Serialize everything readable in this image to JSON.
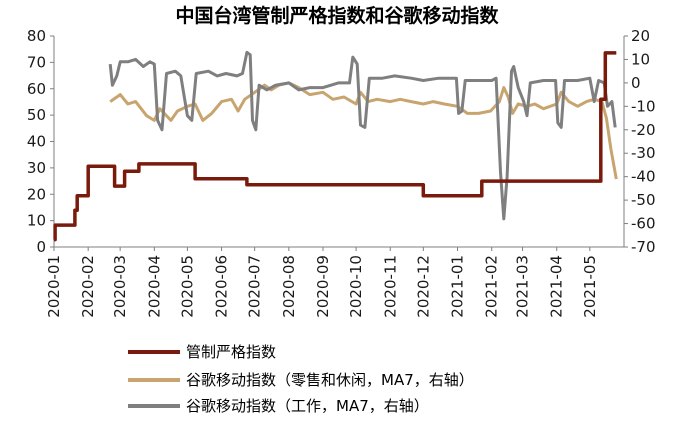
{
  "chart_data": {
    "type": "line",
    "title": "中国台湾管制严格指数和谷歌移动指数",
    "xlabel": "",
    "ylabel_left": "",
    "ylabel_right": "",
    "left_axis": {
      "ylim": [
        0,
        80
      ],
      "ticks": [
        0,
        10,
        20,
        30,
        40,
        50,
        60,
        70,
        80
      ]
    },
    "right_axis": {
      "ylim": [
        -70,
        20
      ],
      "ticks": [
        -70,
        -60,
        -50,
        -40,
        -30,
        -20,
        -10,
        0,
        10,
        20
      ]
    },
    "x_range": [
      "2020-01-01",
      "2021-06-01"
    ],
    "x_tick_labels": [
      "2020-01",
      "2020-02",
      "2020-03",
      "2020-04",
      "2020-05",
      "2020-06",
      "2020-07",
      "2020-08",
      "2020-09",
      "2020-10",
      "2020-11",
      "2020-12",
      "2021-01",
      "2021-02",
      "2021-03",
      "2021-04",
      "2021-05"
    ],
    "grid": false,
    "legend_position": "bottom",
    "series": [
      {
        "name": "管制严格指数",
        "axis": "left",
        "color": "#7a1a0c",
        "step": true,
        "points": [
          [
            "2020-01-01",
            2.8
          ],
          [
            "2020-01-02",
            8.3
          ],
          [
            "2020-01-20",
            13.9
          ],
          [
            "2020-01-22",
            19.4
          ],
          [
            "2020-02-01",
            30.6
          ],
          [
            "2020-02-25",
            23.1
          ],
          [
            "2020-03-05",
            28.7
          ],
          [
            "2020-03-18",
            31.5
          ],
          [
            "2020-05-08",
            25.9
          ],
          [
            "2020-06-24",
            23.6
          ],
          [
            "2020-12-01",
            19.4
          ],
          [
            "2021-01-23",
            25.0
          ],
          [
            "2021-05-11",
            56.0
          ],
          [
            "2021-05-15",
            73.6
          ],
          [
            "2021-05-25",
            73.6
          ]
        ]
      },
      {
        "name": "谷歌移动指数（零售和休闲，MA7，右轴）",
        "axis": "right",
        "color": "#c8a46e",
        "points": [
          [
            "2020-02-21",
            -8
          ],
          [
            "2020-03-01",
            -5
          ],
          [
            "2020-03-08",
            -9
          ],
          [
            "2020-03-15",
            -8
          ],
          [
            "2020-03-25",
            -14
          ],
          [
            "2020-04-01",
            -16
          ],
          [
            "2020-04-06",
            -11
          ],
          [
            "2020-04-16",
            -16
          ],
          [
            "2020-04-22",
            -12
          ],
          [
            "2020-05-01",
            -10
          ],
          [
            "2020-05-08",
            -9
          ],
          [
            "2020-05-15",
            -16
          ],
          [
            "2020-05-23",
            -13
          ],
          [
            "2020-06-01",
            -8
          ],
          [
            "2020-06-10",
            -7
          ],
          [
            "2020-06-16",
            -12
          ],
          [
            "2020-06-22",
            -7
          ],
          [
            "2020-07-01",
            -4
          ],
          [
            "2020-07-10",
            -1
          ],
          [
            "2020-07-16",
            -3
          ],
          [
            "2020-07-23",
            -1
          ],
          [
            "2020-08-01",
            0
          ],
          [
            "2020-08-10",
            -2
          ],
          [
            "2020-08-20",
            -5
          ],
          [
            "2020-09-01",
            -4
          ],
          [
            "2020-09-10",
            -7
          ],
          [
            "2020-09-20",
            -6
          ],
          [
            "2020-10-01",
            -9
          ],
          [
            "2020-10-05",
            -4
          ],
          [
            "2020-10-12",
            -8
          ],
          [
            "2020-10-20",
            -7
          ],
          [
            "2020-11-01",
            -8
          ],
          [
            "2020-11-10",
            -7
          ],
          [
            "2020-11-20",
            -8
          ],
          [
            "2020-12-01",
            -9
          ],
          [
            "2020-12-10",
            -8
          ],
          [
            "2020-12-20",
            -9
          ],
          [
            "2021-01-01",
            -10
          ],
          [
            "2021-01-10",
            -13
          ],
          [
            "2021-01-20",
            -13
          ],
          [
            "2021-01-31",
            -12
          ],
          [
            "2021-02-08",
            -8
          ],
          [
            "2021-02-12",
            -2
          ],
          [
            "2021-02-16",
            -6
          ],
          [
            "2021-02-20",
            -13
          ],
          [
            "2021-02-25",
            -9
          ],
          [
            "2021-03-05",
            -10
          ],
          [
            "2021-03-12",
            -9
          ],
          [
            "2021-03-20",
            -11
          ],
          [
            "2021-04-01",
            -9
          ],
          [
            "2021-04-05",
            -4
          ],
          [
            "2021-04-12",
            -8
          ],
          [
            "2021-04-20",
            -10
          ],
          [
            "2021-04-28",
            -8
          ],
          [
            "2021-05-05",
            -7
          ],
          [
            "2021-05-12",
            -8
          ],
          [
            "2021-05-16",
            -15
          ],
          [
            "2021-05-20",
            -28
          ],
          [
            "2021-05-25",
            -41
          ]
        ]
      },
      {
        "name": "谷歌移动指数（工作，MA7，右轴）",
        "axis": "right",
        "color": "#7f7f7f",
        "points": [
          [
            "2020-02-21",
            8
          ],
          [
            "2020-02-23",
            -1
          ],
          [
            "2020-02-27",
            3
          ],
          [
            "2020-03-01",
            9
          ],
          [
            "2020-03-08",
            9
          ],
          [
            "2020-03-15",
            10
          ],
          [
            "2020-03-22",
            7
          ],
          [
            "2020-03-28",
            9
          ],
          [
            "2020-04-01",
            8
          ],
          [
            "2020-04-04",
            -16
          ],
          [
            "2020-04-08",
            -20
          ],
          [
            "2020-04-12",
            4
          ],
          [
            "2020-04-20",
            5
          ],
          [
            "2020-04-25",
            3
          ],
          [
            "2020-05-01",
            -14
          ],
          [
            "2020-05-05",
            -16
          ],
          [
            "2020-05-09",
            4
          ],
          [
            "2020-05-20",
            5
          ],
          [
            "2020-05-28",
            3
          ],
          [
            "2020-06-05",
            4
          ],
          [
            "2020-06-15",
            3
          ],
          [
            "2020-06-20",
            4
          ],
          [
            "2020-06-24",
            13
          ],
          [
            "2020-06-27",
            12
          ],
          [
            "2020-06-29",
            -16
          ],
          [
            "2020-07-02",
            -20
          ],
          [
            "2020-07-05",
            -1
          ],
          [
            "2020-07-12",
            -3
          ],
          [
            "2020-07-20",
            -1
          ],
          [
            "2020-08-01",
            0
          ],
          [
            "2020-08-10",
            -3
          ],
          [
            "2020-08-20",
            -2
          ],
          [
            "2020-09-01",
            -2
          ],
          [
            "2020-09-15",
            0
          ],
          [
            "2020-09-25",
            0
          ],
          [
            "2020-09-28",
            11
          ],
          [
            "2020-10-02",
            8
          ],
          [
            "2020-10-05",
            -18
          ],
          [
            "2020-10-09",
            -19
          ],
          [
            "2020-10-13",
            2
          ],
          [
            "2020-10-25",
            2
          ],
          [
            "2020-11-05",
            3
          ],
          [
            "2020-11-20",
            2
          ],
          [
            "2020-12-01",
            1
          ],
          [
            "2020-12-15",
            2
          ],
          [
            "2020-12-31",
            2
          ],
          [
            "2021-01-02",
            -13
          ],
          [
            "2021-01-05",
            -12
          ],
          [
            "2021-01-08",
            1
          ],
          [
            "2021-01-25",
            1
          ],
          [
            "2021-02-01",
            1
          ],
          [
            "2021-02-05",
            2
          ],
          [
            "2021-02-09",
            -38
          ],
          [
            "2021-02-12",
            -58
          ],
          [
            "2021-02-15",
            -40
          ],
          [
            "2021-02-19",
            5
          ],
          [
            "2021-02-21",
            7
          ],
          [
            "2021-02-25",
            -2
          ],
          [
            "2021-03-02",
            -8
          ],
          [
            "2021-03-05",
            -14
          ],
          [
            "2021-03-08",
            0
          ],
          [
            "2021-03-20",
            1
          ],
          [
            "2021-03-31",
            1
          ],
          [
            "2021-04-02",
            -17
          ],
          [
            "2021-04-05",
            -19
          ],
          [
            "2021-04-08",
            1
          ],
          [
            "2021-04-20",
            1
          ],
          [
            "2021-05-01",
            2
          ],
          [
            "2021-05-05",
            -8
          ],
          [
            "2021-05-09",
            1
          ],
          [
            "2021-05-14",
            0
          ],
          [
            "2021-05-17",
            -10
          ],
          [
            "2021-05-21",
            -8
          ],
          [
            "2021-05-24",
            -19
          ]
        ]
      }
    ]
  }
}
